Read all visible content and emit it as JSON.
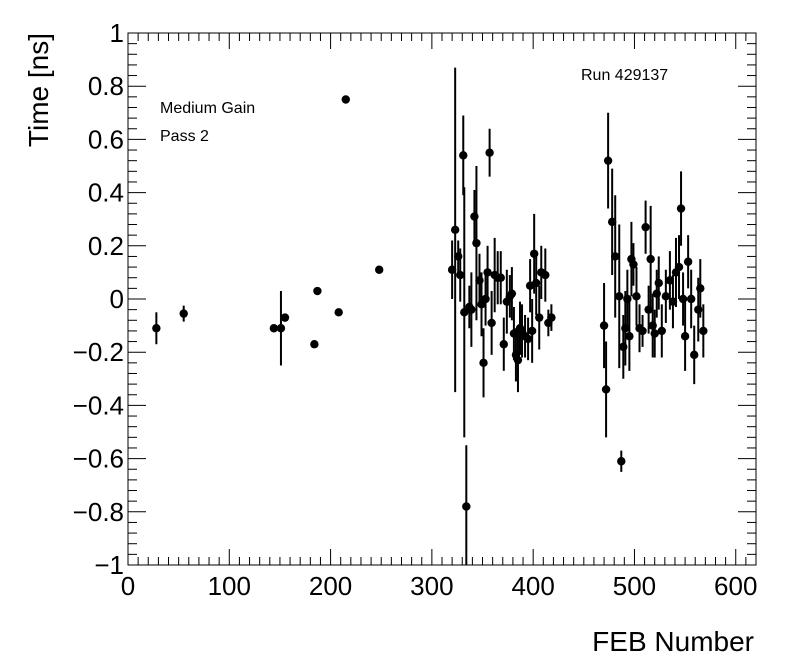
{
  "chart_data": {
    "type": "scatter",
    "xlabel": "FEB Number",
    "ylabel": "Time [ns]",
    "xlim": [
      0,
      620
    ],
    "ylim": [
      -1,
      1
    ],
    "x_ticks": [
      0,
      100,
      200,
      300,
      400,
      500,
      600
    ],
    "y_ticks": [
      -1,
      -0.8,
      -0.6,
      -0.4,
      -0.2,
      0,
      0.2,
      0.4,
      0.6,
      0.8,
      1
    ],
    "annotations": [
      "Medium Gain",
      "Pass 2",
      "Run 429137"
    ],
    "points": [
      {
        "x": 28,
        "y": -0.11,
        "err": 0.06
      },
      {
        "x": 55,
        "y": -0.055,
        "err": 0.03
      },
      {
        "x": 144,
        "y": -0.11,
        "err": 0.0
      },
      {
        "x": 151,
        "y": -0.11,
        "err": 0.14
      },
      {
        "x": 155,
        "y": -0.07,
        "err": 0.0
      },
      {
        "x": 184,
        "y": -0.17,
        "err": 0.0
      },
      {
        "x": 187,
        "y": 0.03,
        "err": 0.0
      },
      {
        "x": 208,
        "y": -0.05,
        "err": 0.0
      },
      {
        "x": 215,
        "y": 0.75,
        "err": 0.0
      },
      {
        "x": 248,
        "y": 0.11,
        "err": 0.0
      },
      {
        "x": 320,
        "y": 0.11,
        "err": 0.11
      },
      {
        "x": 323,
        "y": 0.26,
        "err": 0.61
      },
      {
        "x": 326,
        "y": 0.16,
        "err": 0.06
      },
      {
        "x": 328,
        "y": 0.09,
        "err": 0.1
      },
      {
        "x": 331,
        "y": 0.54,
        "err": 0.15
      },
      {
        "x": 332,
        "y": -0.05,
        "err": 0.47
      },
      {
        "x": 334,
        "y": -0.78,
        "err": 0.23
      },
      {
        "x": 337,
        "y": -0.03,
        "err": 0.08
      },
      {
        "x": 339,
        "y": -0.04,
        "err": 0.14
      },
      {
        "x": 342,
        "y": 0.31,
        "err": 0.1
      },
      {
        "x": 344,
        "y": 0.21,
        "err": 0.29
      },
      {
        "x": 347,
        "y": 0.07,
        "err": 0.1
      },
      {
        "x": 349,
        "y": -0.02,
        "err": 0.12
      },
      {
        "x": 351,
        "y": -0.24,
        "err": 0.13
      },
      {
        "x": 353,
        "y": 0.0,
        "err": 0.1
      },
      {
        "x": 355,
        "y": 0.1,
        "err": 0.1
      },
      {
        "x": 357,
        "y": 0.55,
        "err": 0.09
      },
      {
        "x": 359,
        "y": -0.09,
        "err": 0.12
      },
      {
        "x": 362,
        "y": 0.09,
        "err": 0.14
      },
      {
        "x": 365,
        "y": 0.08,
        "err": 0.1
      },
      {
        "x": 368,
        "y": 0.08,
        "err": 0.1
      },
      {
        "x": 371,
        "y": -0.17,
        "err": 0.1
      },
      {
        "x": 374,
        "y": -0.01,
        "err": 0.12
      },
      {
        "x": 377,
        "y": 0.01,
        "err": 0.08
      },
      {
        "x": 379,
        "y": 0.02,
        "err": 0.1
      },
      {
        "x": 381,
        "y": -0.13,
        "err": 0.1
      },
      {
        "x": 383,
        "y": -0.21,
        "err": 0.1
      },
      {
        "x": 385,
        "y": -0.23,
        "err": 0.12
      },
      {
        "x": 387,
        "y": -0.11,
        "err": 0.1
      },
      {
        "x": 389,
        "y": -0.12,
        "err": 0.1
      },
      {
        "x": 392,
        "y": -0.14,
        "err": 0.08
      },
      {
        "x": 395,
        "y": -0.15,
        "err": 0.08
      },
      {
        "x": 397,
        "y": 0.05,
        "err": 0.1
      },
      {
        "x": 399,
        "y": -0.12,
        "err": 0.12
      },
      {
        "x": 401,
        "y": 0.17,
        "err": 0.15
      },
      {
        "x": 403,
        "y": 0.06,
        "err": 0.12
      },
      {
        "x": 406,
        "y": -0.07,
        "err": 0.12
      },
      {
        "x": 408,
        "y": 0.1,
        "err": 0.1
      },
      {
        "x": 412,
        "y": 0.09,
        "err": 0.1
      },
      {
        "x": 415,
        "y": -0.09,
        "err": 0.05
      },
      {
        "x": 418,
        "y": -0.07,
        "err": 0.05
      },
      {
        "x": 470,
        "y": -0.1,
        "err": 0.16
      },
      {
        "x": 472,
        "y": -0.34,
        "err": 0.18
      },
      {
        "x": 474,
        "y": 0.52,
        "err": 0.18
      },
      {
        "x": 478,
        "y": 0.29,
        "err": 0.2
      },
      {
        "x": 481,
        "y": 0.16,
        "err": 0.23
      },
      {
        "x": 485,
        "y": 0.01,
        "err": 0.27
      },
      {
        "x": 487,
        "y": -0.61,
        "err": 0.04
      },
      {
        "x": 489,
        "y": -0.18,
        "err": 0.12
      },
      {
        "x": 491,
        "y": -0.11,
        "err": 0.14
      },
      {
        "x": 493,
        "y": 0.0,
        "err": 0.11
      },
      {
        "x": 495,
        "y": -0.14,
        "err": 0.13
      },
      {
        "x": 497,
        "y": 0.15,
        "err": 0.14
      },
      {
        "x": 499,
        "y": 0.13,
        "err": 0.08
      },
      {
        "x": 502,
        "y": 0.01,
        "err": 0.11
      },
      {
        "x": 505,
        "y": -0.11,
        "err": 0.09
      },
      {
        "x": 508,
        "y": -0.12,
        "err": 0.06
      },
      {
        "x": 511,
        "y": 0.27,
        "err": 0.1
      },
      {
        "x": 514,
        "y": -0.04,
        "err": 0.09
      },
      {
        "x": 516,
        "y": 0.15,
        "err": 0.2
      },
      {
        "x": 518,
        "y": -0.1,
        "err": 0.12
      },
      {
        "x": 520,
        "y": -0.13,
        "err": 0.09
      },
      {
        "x": 522,
        "y": 0.02,
        "err": 0.09
      },
      {
        "x": 524,
        "y": 0.06,
        "err": 0.1
      },
      {
        "x": 527,
        "y": -0.12,
        "err": 0.1
      },
      {
        "x": 531,
        "y": 0.01,
        "err": 0.1
      },
      {
        "x": 535,
        "y": 0.07,
        "err": 0.11
      },
      {
        "x": 538,
        "y": -0.01,
        "err": 0.1
      },
      {
        "x": 541,
        "y": 0.1,
        "err": 0.13
      },
      {
        "x": 544,
        "y": 0.12,
        "err": 0.12
      },
      {
        "x": 546,
        "y": 0.34,
        "err": 0.14
      },
      {
        "x": 548,
        "y": 0.0,
        "err": 0.1
      },
      {
        "x": 550,
        "y": -0.14,
        "err": 0.13
      },
      {
        "x": 553,
        "y": 0.14,
        "err": 0.1
      },
      {
        "x": 556,
        "y": 0.0,
        "err": 0.11
      },
      {
        "x": 559,
        "y": -0.21,
        "err": 0.11
      },
      {
        "x": 563,
        "y": -0.04,
        "err": 0.12
      },
      {
        "x": 565,
        "y": 0.04,
        "err": 0.11
      },
      {
        "x": 568,
        "y": -0.12,
        "err": 0.1
      }
    ]
  }
}
